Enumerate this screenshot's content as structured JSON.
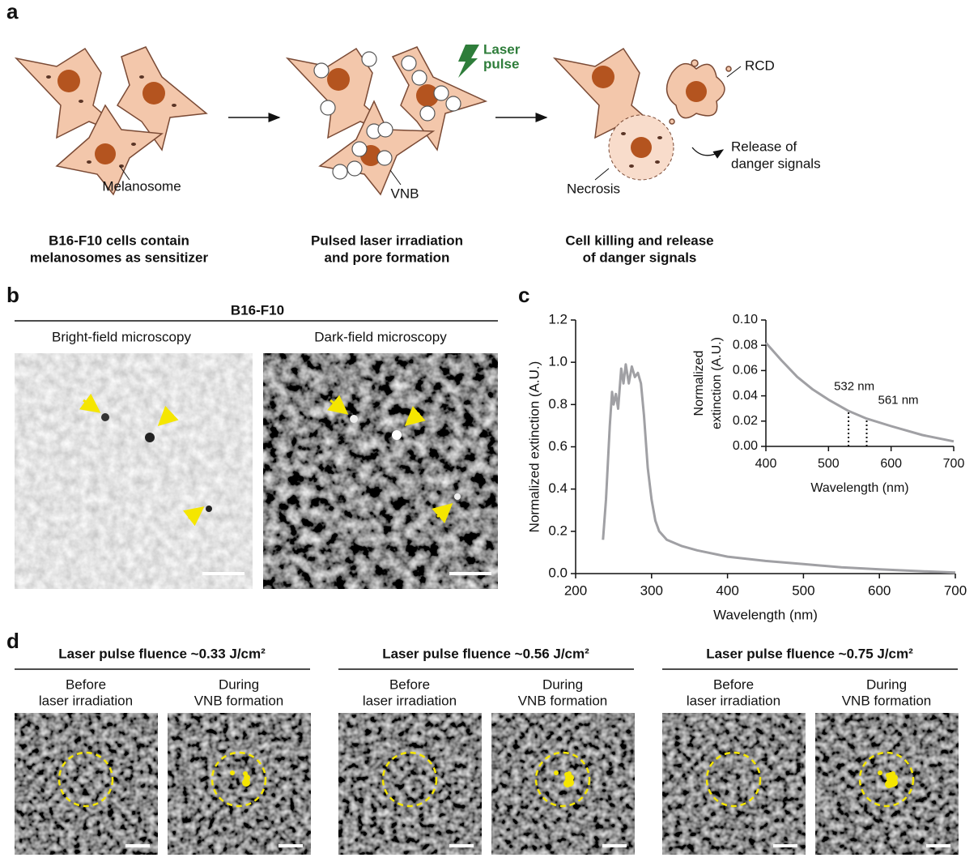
{
  "panel_a": {
    "label": "a",
    "laser": [
      "Laser",
      "pulse"
    ],
    "melanosome": "Melanosome",
    "vnb": "VNB",
    "rcd": "RCD",
    "release": [
      "Release of",
      "danger signals"
    ],
    "necrosis": "Necrosis",
    "captions": [
      [
        "B16-F10 cells contain",
        "melanosomes as sensitizer"
      ],
      [
        "Pulsed laser irradiation",
        "and pore formation"
      ],
      [
        "Cell killing and release",
        "of danger signals"
      ]
    ]
  },
  "panel_b": {
    "label": "b",
    "title": "B16-F10",
    "images": [
      "Bright-field microscopy",
      "Dark-field microscopy"
    ]
  },
  "panel_c": {
    "label": "c"
  },
  "chart_data": [
    {
      "type": "line",
      "xlabel": "Wavelength (nm)",
      "ylabel": "Normalized extinction (A.U.)",
      "color": "#a0a0a4",
      "x": [
        236,
        240,
        245,
        248,
        250,
        253,
        256,
        260,
        263,
        266,
        270,
        274,
        278,
        282,
        286,
        290,
        295,
        300,
        305,
        310,
        315,
        320,
        340,
        360,
        400,
        450,
        500,
        550,
        600,
        650,
        700
      ],
      "values": [
        0.16,
        0.35,
        0.7,
        0.86,
        0.8,
        0.85,
        0.78,
        0.97,
        0.9,
        0.99,
        0.9,
        0.98,
        0.93,
        0.95,
        0.9,
        0.75,
        0.5,
        0.35,
        0.25,
        0.2,
        0.18,
        0.16,
        0.13,
        0.11,
        0.08,
        0.06,
        0.045,
        0.03,
        0.02,
        0.012,
        0.005
      ],
      "xlim": [
        200,
        700
      ],
      "xticks": [
        200,
        300,
        400,
        500,
        600,
        700
      ],
      "ylim": [
        0,
        1.2
      ],
      "yticks": [
        {
          "value": 0,
          "label": "0.0"
        },
        0.2,
        0.4,
        0.6,
        0.8,
        {
          "value": 1,
          "label": "1.0"
        },
        1.2
      ]
    },
    {
      "type": "line",
      "xlabel": "Wavelength (nm)",
      "ylabel": [
        "Normalized",
        "extinction (A.U.)"
      ],
      "color": "#a0a0a4",
      "x": [
        400,
        425,
        450,
        475,
        500,
        532,
        561,
        600,
        650,
        700
      ],
      "values": [
        0.082,
        0.068,
        0.055,
        0.045,
        0.037,
        0.028,
        0.022,
        0.016,
        0.009,
        0.004
      ],
      "xlim": [
        400,
        700
      ],
      "xticks": [
        400,
        500,
        600,
        700
      ],
      "ylim": [
        0,
        0.1
      ],
      "yticks": [
        {
          "value": 0,
          "label": "0.00"
        },
        {
          "value": 0.02,
          "label": "0.02"
        },
        {
          "value": 0.04,
          "label": "0.04"
        },
        {
          "value": 0.06,
          "label": "0.06"
        },
        {
          "value": 0.08,
          "label": "0.08"
        },
        {
          "value": 0.1,
          "label": "0.10"
        }
      ],
      "annotations": [
        {
          "text": "532 nm",
          "x": 532
        },
        {
          "text": "561 nm",
          "x": 561
        }
      ]
    }
  ],
  "panel_d": {
    "label": "d",
    "groups": [
      {
        "title": "Laser pulse fluence ~0.33 J/cm²",
        "images": [
          [
            "Before",
            "laser irradiation"
          ],
          [
            "During",
            "VNB formation"
          ]
        ]
      },
      {
        "title": "Laser pulse fluence ~0.56 J/cm²",
        "images": [
          [
            "Before",
            "laser irradiation"
          ],
          [
            "During",
            "VNB formation"
          ]
        ]
      },
      {
        "title": "Laser pulse fluence ~0.75 J/cm²",
        "images": [
          [
            "Before",
            "laser irradiation"
          ],
          [
            "During",
            "VNB formation"
          ]
        ]
      }
    ]
  }
}
